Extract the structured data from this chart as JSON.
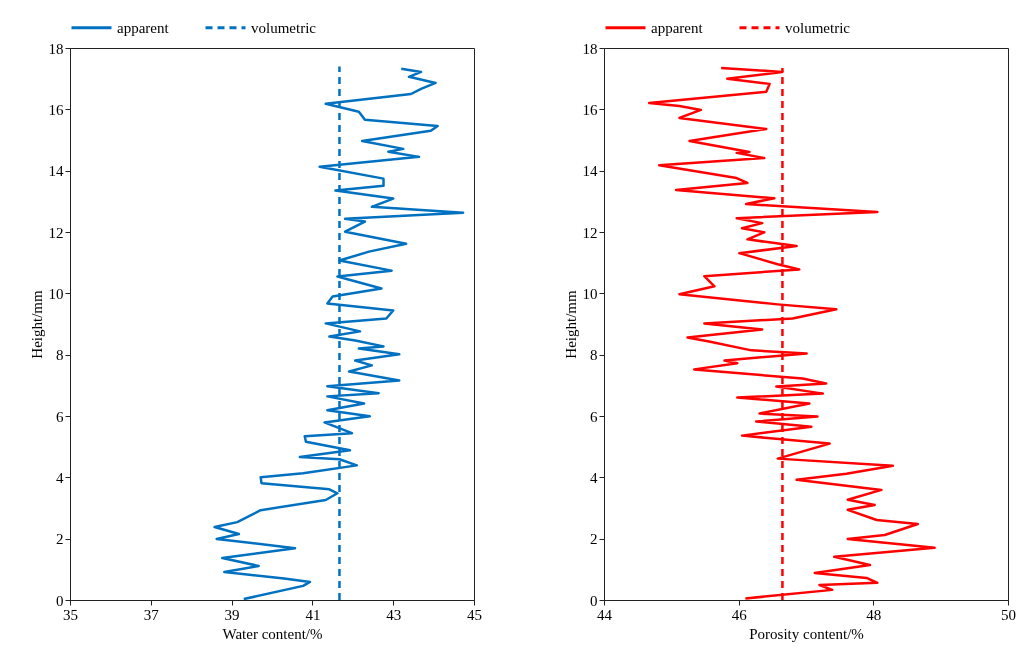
{
  "chart_data": [
    {
      "type": "line",
      "xlabel": "Water content/%",
      "ylabel": "Height/mm",
      "xlim": [
        35,
        45
      ],
      "xticks": [
        35,
        37,
        39,
        41,
        43,
        45
      ],
      "ylim": [
        0,
        18
      ],
      "yticks": [
        0,
        2,
        4,
        6,
        8,
        10,
        12,
        14,
        16,
        18
      ],
      "grid": false,
      "legend": "top",
      "series": [
        {
          "name": "apparent",
          "color": "#0070c0",
          "line_style": "solid",
          "x": [
            39.3,
            40.77,
            40.94,
            40.3,
            38.82,
            39.67,
            38.77,
            40.57,
            38.63,
            39.18,
            38.58,
            39.14,
            39.72,
            41.33,
            41.62,
            41.42,
            39.74,
            39.72,
            40.77,
            42.1,
            41.67,
            40.69,
            41.93,
            40.84,
            40.81,
            41.98,
            41.3,
            42.42,
            41.37,
            42.28,
            41.37,
            42.64,
            41.37,
            43.15,
            41.91,
            42.47,
            42.06,
            43.15,
            42.15,
            42.76,
            42.06,
            41.42,
            42.18,
            41.33,
            42.83,
            43.0,
            41.37,
            41.5,
            42.71,
            41.62,
            42.96,
            41.67,
            42.4,
            43.32,
            41.81,
            42.3,
            41.81,
            44.73,
            42.47,
            43.0,
            41.57,
            42.76,
            42.76,
            41.18,
            43.64,
            42.88,
            43.25,
            42.23,
            43.93,
            44.1,
            42.3,
            42.15,
            41.33,
            43.44,
            43.69,
            44.05,
            43.39,
            43.69,
            43.2
          ],
          "values": [
            0.03,
            0.46,
            0.59,
            0.7,
            0.91,
            1.11,
            1.37,
            1.69,
            1.99,
            2.15,
            2.38,
            2.54,
            2.93,
            3.26,
            3.48,
            3.61,
            3.81,
            4.0,
            4.13,
            4.39,
            4.59,
            4.66,
            4.88,
            5.16,
            5.34,
            5.44,
            5.79,
            5.99,
            6.19,
            6.41,
            6.64,
            6.74,
            6.97,
            7.16,
            7.45,
            7.65,
            7.81,
            8.01,
            8.2,
            8.27,
            8.46,
            8.59,
            8.76,
            9.02,
            9.18,
            9.44,
            9.67,
            9.9,
            10.16,
            10.55,
            10.74,
            11.07,
            11.36,
            11.62,
            12.01,
            12.34,
            12.43,
            12.63,
            12.82,
            13.09,
            13.35,
            13.51,
            13.74,
            14.13,
            14.45,
            14.62,
            14.71,
            14.97,
            15.3,
            15.46,
            15.66,
            15.92,
            16.18,
            16.5,
            16.67,
            16.86,
            17.06,
            17.22,
            17.32
          ]
        },
        {
          "name": "volumetric",
          "color": "#0070c0",
          "line_style": "dashed",
          "x": [
            41.67,
            41.67
          ],
          "values": [
            0,
            17.4
          ]
        }
      ]
    },
    {
      "type": "line",
      "xlabel": "Porosity content/%",
      "ylabel": "Height/mm",
      "xlim": [
        44,
        50
      ],
      "xticks": [
        44,
        46,
        48,
        50
      ],
      "ylim": [
        0,
        18
      ],
      "yticks": [
        0,
        2,
        4,
        6,
        8,
        10,
        12,
        14,
        16,
        18
      ],
      "grid": false,
      "legend": "top",
      "series": [
        {
          "name": "apparent",
          "color": "#ff0000",
          "line_style": "solid",
          "x": [
            46.1,
            47.39,
            47.2,
            48.06,
            47.9,
            47.13,
            47.95,
            47.42,
            48.91,
            47.62,
            48.17,
            48.66,
            48.05,
            47.62,
            48.02,
            47.62,
            48.12,
            46.86,
            47.6,
            48.29,
            46.58,
            47.35,
            46.05,
            47.08,
            46.26,
            47.17,
            46.31,
            47.05,
            45.98,
            47.25,
            46.56,
            47.3,
            46.95,
            45.34,
            45.98,
            45.79,
            47.01,
            46.19,
            45.56,
            45.24,
            46.35,
            45.49,
            46.8,
            47.45,
            46.58,
            45.12,
            45.64,
            45.49,
            46.9,
            46.58,
            46.01,
            46.86,
            46.13,
            46.38,
            46.05,
            46.35,
            45.97,
            48.06,
            46.11,
            46.53,
            45.07,
            46.13,
            45.97,
            44.82,
            46.38,
            45.97,
            46.16,
            45.27,
            46.41,
            45.12,
            45.44,
            45.12,
            44.67,
            46.41,
            46.46,
            45.83,
            46.65,
            45.74
          ],
          "values": [
            0.05,
            0.33,
            0.49,
            0.56,
            0.72,
            0.88,
            1.14,
            1.41,
            1.7,
            1.99,
            2.12,
            2.48,
            2.61,
            2.94,
            3.1,
            3.27,
            3.59,
            3.92,
            4.12,
            4.38,
            4.61,
            5.1,
            5.36,
            5.65,
            5.82,
            5.98,
            6.08,
            6.41,
            6.6,
            6.73,
            6.96,
            7.06,
            7.22,
            7.52,
            7.72,
            7.81,
            8.04,
            8.14,
            8.43,
            8.56,
            8.82,
            9.02,
            9.18,
            9.48,
            9.64,
            9.97,
            10.23,
            10.56,
            10.78,
            10.95,
            11.31,
            11.54,
            11.76,
            11.99,
            12.12,
            12.29,
            12.45,
            12.65,
            12.91,
            13.1,
            13.37,
            13.6,
            13.76,
            14.18,
            14.41,
            14.58,
            14.61,
            14.97,
            15.36,
            15.72,
            15.98,
            16.11,
            16.21,
            16.57,
            16.83,
            17.0,
            17.22,
            17.35
          ]
        },
        {
          "name": "volumetric",
          "color": "#ff0000",
          "line_style": "dashed",
          "x": [
            46.65,
            46.65
          ],
          "values": [
            0,
            17.35
          ]
        }
      ]
    }
  ]
}
